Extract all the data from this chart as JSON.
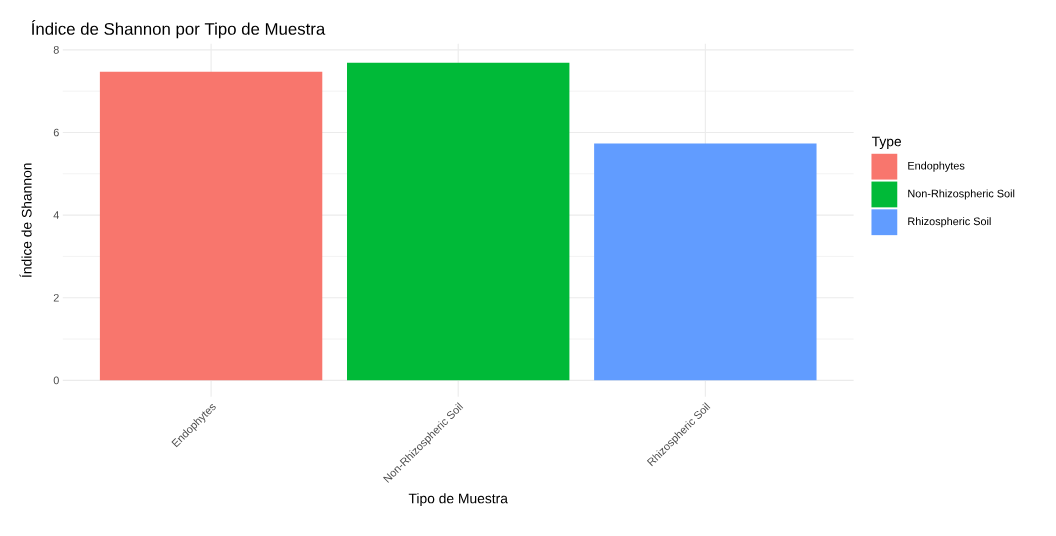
{
  "chart_data": {
    "type": "bar",
    "title": "Índice de Shannon por Tipo de Muestra",
    "xlabel": "Tipo de Muestra",
    "ylabel": "Índice de Shannon",
    "legend_title": "Type",
    "categories": [
      "Endophytes",
      "Non-Rhizospheric Soil",
      "Rhizospheric Soil"
    ],
    "series": [
      {
        "name": "Endophytes",
        "color": "#f8766d",
        "values": [
          7.47,
          null,
          null
        ]
      },
      {
        "name": "Non-Rhizospheric Soil",
        "color": "#00ba38",
        "values": [
          null,
          7.69,
          null
        ]
      },
      {
        "name": "Rhizospheric Soil",
        "color": "#619cff",
        "values": [
          null,
          null,
          5.73
        ]
      }
    ],
    "ylim": [
      -0.4,
      8.15
    ],
    "yticks": [
      0,
      2,
      4,
      6,
      8
    ],
    "grid": true,
    "legend": "right"
  }
}
